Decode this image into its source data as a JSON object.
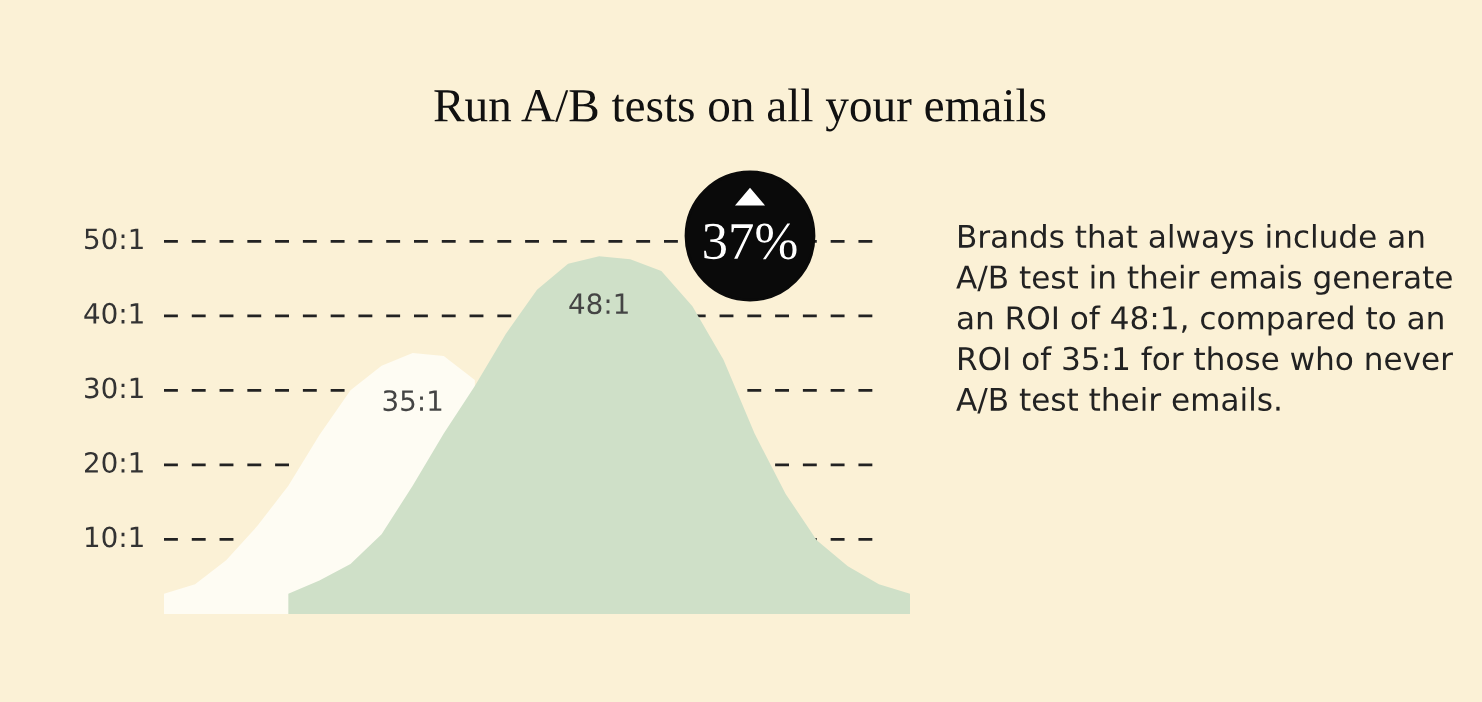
{
  "chart_data": {
    "type": "area",
    "title": "Run A/B tests on all your emails",
    "categories": [
      null,
      null,
      null,
      null,
      null,
      null,
      null,
      null,
      null,
      null,
      null,
      null,
      null,
      null,
      null,
      null,
      null,
      null,
      null,
      null,
      null,
      null,
      null,
      null,
      null
    ],
    "series": [
      {
        "color": "#fefcf3",
        "values": [
          2.7,
          4,
          7.2,
          11.8,
          17.2,
          24,
          30,
          33.3,
          35,
          34.6,
          31.4,
          null,
          null,
          null,
          null,
          null,
          null,
          null,
          null,
          null,
          null,
          null,
          null,
          null,
          null
        ],
        "value_labels": [
          null,
          null,
          null,
          null,
          null,
          null,
          null,
          null,
          "35:1",
          null,
          null,
          null,
          null,
          null,
          null,
          null,
          null,
          null,
          null,
          null,
          null,
          null,
          null,
          null,
          null
        ]
      },
      {
        "color": "#cfe0c8",
        "values": [
          null,
          null,
          null,
          null,
          2.7,
          4.5,
          6.7,
          10.7,
          17.2,
          24.2,
          30.6,
          37.6,
          43.5,
          47,
          48,
          47.6,
          46,
          41.3,
          34.1,
          24.2,
          16.1,
          9.9,
          6.4,
          4,
          2.7
        ],
        "value_labels": [
          null,
          null,
          null,
          null,
          null,
          null,
          null,
          null,
          null,
          null,
          null,
          null,
          null,
          null,
          "48:1",
          null,
          null,
          null,
          null,
          null,
          null,
          null,
          null,
          null,
          null
        ]
      }
    ],
    "ref_lines": [
      {
        "axis": "y",
        "value": 10,
        "label": "10:1",
        "line_style": "dashed",
        "color": "#222222"
      },
      {
        "axis": "y",
        "value": 20,
        "label": "20:1",
        "line_style": "dashed",
        "color": "#222222"
      },
      {
        "axis": "y",
        "value": 30,
        "label": "30:1",
        "line_style": "dashed",
        "color": "#222222"
      },
      {
        "axis": "y",
        "value": 40,
        "label": "40:1",
        "line_style": "dashed",
        "color": "#222222"
      },
      {
        "axis": "y",
        "value": 50,
        "label": "50:1",
        "line_style": "dashed",
        "color": "#222222"
      }
    ],
    "annotations": [
      "37%",
      "Brands that always include an A/B test in their emais generate an ROI of 48:1, compared to an ROI of 35:1 for those who never A/B test their emails."
    ]
  }
}
